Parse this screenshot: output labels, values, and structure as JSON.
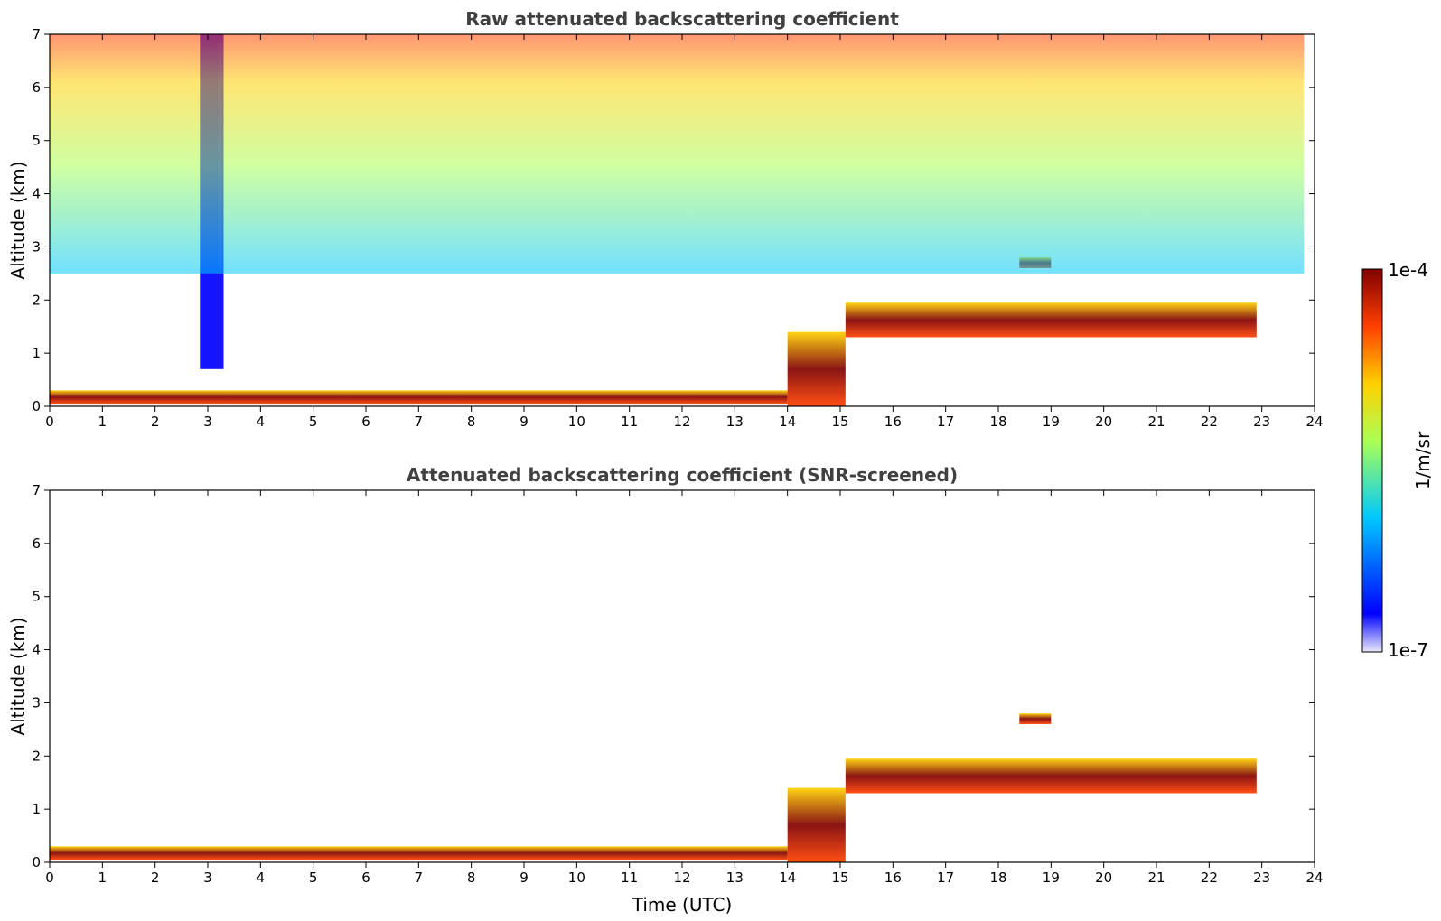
{
  "chart_data": [
    {
      "type": "heatmap",
      "title": "Raw attenuated backscattering coefficient",
      "xlabel": "",
      "ylabel": "Altitude (km)",
      "xlim": [
        0,
        24
      ],
      "ylim": [
        0,
        7
      ],
      "xticks": [
        "0",
        "1",
        "2",
        "3",
        "4",
        "5",
        "6",
        "7",
        "8",
        "9",
        "10",
        "11",
        "12",
        "13",
        "14",
        "15",
        "16",
        "17",
        "18",
        "19",
        "20",
        "21",
        "22",
        "23",
        "24"
      ],
      "yticks": [
        "0",
        "1",
        "2",
        "3",
        "4",
        "5",
        "6",
        "7"
      ],
      "features": [
        {
          "name": "surface layer",
          "time_range": [
            0,
            14
          ],
          "altitude_range": [
            0.05,
            0.3
          ],
          "level": "high"
        },
        {
          "name": "elevated aerosol layer",
          "time_range": [
            14,
            15.1
          ],
          "altitude_range": [
            0,
            1.4
          ],
          "level": "high"
        },
        {
          "name": "cloud layer",
          "time_range": [
            15.1,
            22.9
          ],
          "altitude_range": [
            1.3,
            1.95
          ],
          "level": "high"
        },
        {
          "name": "cloud patch",
          "time_range": [
            18.4,
            19.0
          ],
          "altitude_range": [
            2.6,
            2.8
          ],
          "level": "high"
        },
        {
          "name": "low-signal band",
          "time_range": [
            2.85,
            3.3
          ],
          "altitude_range": [
            0.7,
            7
          ],
          "level": "low"
        },
        {
          "name": "background noise",
          "time_range": [
            0,
            23.8
          ],
          "altitude_range": [
            2.5,
            7
          ],
          "level": "medium"
        }
      ]
    },
    {
      "type": "heatmap",
      "title": "Attenuated backscattering coefficient (SNR-screened)",
      "xlabel": "Time (UTC)",
      "ylabel": "Altitude (km)",
      "xlim": [
        0,
        24
      ],
      "ylim": [
        0,
        7
      ],
      "xticks": [
        "0",
        "1",
        "2",
        "3",
        "4",
        "5",
        "6",
        "7",
        "8",
        "9",
        "10",
        "11",
        "12",
        "13",
        "14",
        "15",
        "16",
        "17",
        "18",
        "19",
        "20",
        "21",
        "22",
        "23",
        "24"
      ],
      "yticks": [
        "0",
        "1",
        "2",
        "3",
        "4",
        "5",
        "6",
        "7"
      ],
      "features": [
        {
          "name": "surface layer",
          "time_range": [
            0,
            14
          ],
          "altitude_range": [
            0.05,
            0.3
          ],
          "level": "high"
        },
        {
          "name": "elevated aerosol layer",
          "time_range": [
            14,
            15.1
          ],
          "altitude_range": [
            0,
            1.4
          ],
          "level": "high"
        },
        {
          "name": "cloud layer",
          "time_range": [
            15.1,
            22.9
          ],
          "altitude_range": [
            1.3,
            1.95
          ],
          "level": "high"
        },
        {
          "name": "cloud patch",
          "time_range": [
            18.4,
            19.0
          ],
          "altitude_range": [
            2.6,
            2.8
          ],
          "level": "high"
        }
      ]
    }
  ],
  "colorbar": {
    "label": "1/m/sr",
    "max_label": "1e-4",
    "min_label": "1e-7",
    "colormap": "jet",
    "colors": [
      "#e8e8f8",
      "#0000ff",
      "#00c8ff",
      "#aaff55",
      "#ffd000",
      "#ff4000",
      "#800000"
    ]
  }
}
